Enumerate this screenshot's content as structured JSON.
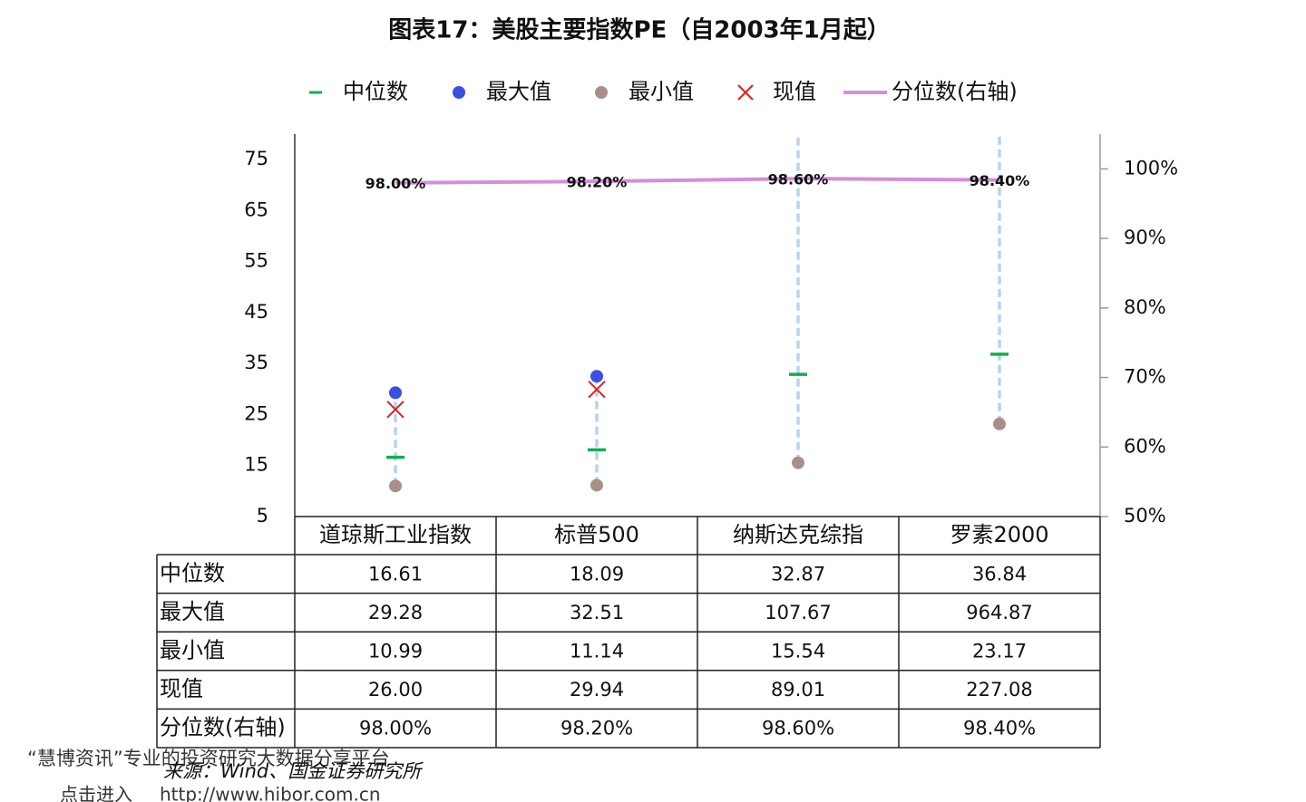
{
  "chart_data": {
    "type": "scatter",
    "title": "图表17：美股主要指数PE（自2003年1月起）",
    "categories": [
      "道琼斯工业指数",
      "标普500",
      "纳斯达克综指",
      "罗素2000"
    ],
    "ylim": [
      5,
      80
    ],
    "yticks": [
      5,
      15,
      25,
      35,
      45,
      55,
      65,
      75
    ],
    "y2lim": [
      50,
      105
    ],
    "y2ticks": [
      {
        "value": 50,
        "label": "50%"
      },
      {
        "value": 60,
        "label": "60%"
      },
      {
        "value": 70,
        "label": "70%"
      },
      {
        "value": 80,
        "label": "80%"
      },
      {
        "value": 90,
        "label": "90%"
      },
      {
        "value": 100,
        "label": "100%"
      }
    ],
    "range_color": "#b8d4ee",
    "series": [
      {
        "name": "中位数",
        "color": "#1aaa55",
        "marker": "dash",
        "values": [
          16.61,
          18.09,
          32.87,
          36.84
        ],
        "value_labels": [
          "16.61",
          "18.09",
          "32.87",
          "36.84"
        ]
      },
      {
        "name": "最大值",
        "color": "#3b4fe0",
        "marker": "circle",
        "values": [
          29.28,
          32.51,
          107.67,
          964.87
        ],
        "value_labels": [
          "29.28",
          "32.51",
          "107.67",
          "964.87"
        ]
      },
      {
        "name": "最小值",
        "color": "#a89088",
        "marker": "circle",
        "values": [
          10.99,
          11.14,
          15.54,
          23.17
        ],
        "value_labels": [
          "10.99",
          "11.14",
          "15.54",
          "23.17"
        ]
      },
      {
        "name": "现值",
        "color": "#e02020",
        "marker": "cross",
        "values": [
          26,
          29.94,
          89.01,
          227.08
        ],
        "value_labels": [
          "26.00",
          "29.94",
          "89.01",
          "227.08"
        ]
      },
      {
        "name": "分位数(右轴)",
        "color": "#d38fd8",
        "marker": "line",
        "axis": "y2",
        "values": [
          98,
          98.2,
          98.6,
          98.4
        ],
        "value_labels": [
          "98.00%",
          "98.20%",
          "98.60%",
          "98.40%"
        ]
      }
    ],
    "source": "来源：Wind、国金证券研究所"
  },
  "watermark": [
    "“慧博资讯”专业的投资研究大数据分享平台",
    "点击进入",
    "http://www.hibor.com.cn"
  ]
}
